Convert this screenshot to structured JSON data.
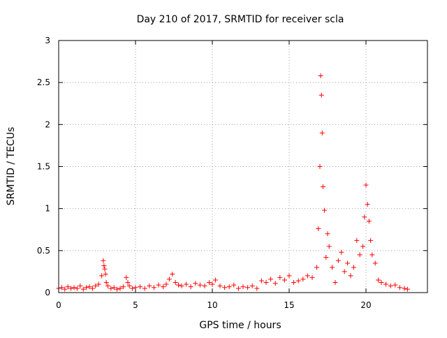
{
  "chart_data": {
    "type": "scatter",
    "title": "Day 210 of 2017, SRMTID for receiver scla",
    "xlabel": "GPS time / hours",
    "ylabel": "SRMTID / TECUs",
    "xlim": [
      0,
      24
    ],
    "ylim": [
      0,
      3
    ],
    "xticks": [
      0,
      5,
      10,
      15,
      20
    ],
    "xtick_labels": [
      "0",
      "5",
      "10",
      "15",
      "20"
    ],
    "yticks": [
      0,
      0.5,
      1,
      1.5,
      2,
      2.5,
      3
    ],
    "ytick_labels": [
      "0",
      "0.5",
      "1",
      "1.5",
      "2",
      "2.5",
      "3"
    ],
    "grid": true,
    "marker": "+",
    "color": "#ff0000",
    "series": [
      {
        "name": "SRMTID",
        "x": [
          0.0,
          0.2,
          0.4,
          0.6,
          0.8,
          1.0,
          1.2,
          1.4,
          1.6,
          1.8,
          2.0,
          2.2,
          2.4,
          2.6,
          2.8,
          2.9,
          2.95,
          3.0,
          3.05,
          3.1,
          3.2,
          3.4,
          3.6,
          3.8,
          4.0,
          4.2,
          4.4,
          4.5,
          4.6,
          4.8,
          5.0,
          5.3,
          5.6,
          5.9,
          6.2,
          6.5,
          6.8,
          7.0,
          7.2,
          7.4,
          7.6,
          7.8,
          8.0,
          8.3,
          8.6,
          8.9,
          9.2,
          9.5,
          9.8,
          10.0,
          10.2,
          10.5,
          10.8,
          11.1,
          11.4,
          11.7,
          12.0,
          12.3,
          12.6,
          12.9,
          13.2,
          13.5,
          13.8,
          14.1,
          14.4,
          14.7,
          15.0,
          15.3,
          15.6,
          15.9,
          16.2,
          16.5,
          16.8,
          16.9,
          17.0,
          17.05,
          17.1,
          17.15,
          17.2,
          17.3,
          17.4,
          17.5,
          17.6,
          17.8,
          18.0,
          18.2,
          18.4,
          18.6,
          18.8,
          19.0,
          19.2,
          19.4,
          19.6,
          19.8,
          19.9,
          20.0,
          20.1,
          20.2,
          20.3,
          20.4,
          20.6,
          20.8,
          21.0,
          21.3,
          21.6,
          21.9,
          22.2,
          22.5,
          22.7
        ],
        "y": [
          0.05,
          0.06,
          0.04,
          0.07,
          0.05,
          0.06,
          0.05,
          0.08,
          0.04,
          0.06,
          0.07,
          0.05,
          0.08,
          0.1,
          0.2,
          0.38,
          0.32,
          0.28,
          0.22,
          0.12,
          0.08,
          0.05,
          0.06,
          0.04,
          0.05,
          0.07,
          0.18,
          0.12,
          0.08,
          0.05,
          0.06,
          0.07,
          0.05,
          0.08,
          0.06,
          0.09,
          0.07,
          0.1,
          0.16,
          0.22,
          0.12,
          0.09,
          0.08,
          0.1,
          0.07,
          0.11,
          0.09,
          0.08,
          0.12,
          0.1,
          0.15,
          0.08,
          0.06,
          0.07,
          0.09,
          0.05,
          0.07,
          0.06,
          0.08,
          0.05,
          0.14,
          0.12,
          0.16,
          0.11,
          0.18,
          0.15,
          0.2,
          0.12,
          0.14,
          0.16,
          0.2,
          0.18,
          0.3,
          0.76,
          1.5,
          2.58,
          2.35,
          1.9,
          1.26,
          0.98,
          0.42,
          0.7,
          0.55,
          0.3,
          0.12,
          0.38,
          0.48,
          0.25,
          0.35,
          0.2,
          0.3,
          0.62,
          0.45,
          0.55,
          0.9,
          1.28,
          1.05,
          0.85,
          0.62,
          0.45,
          0.35,
          0.15,
          0.12,
          0.1,
          0.08,
          0.09,
          0.06,
          0.05,
          0.04
        ]
      }
    ]
  }
}
